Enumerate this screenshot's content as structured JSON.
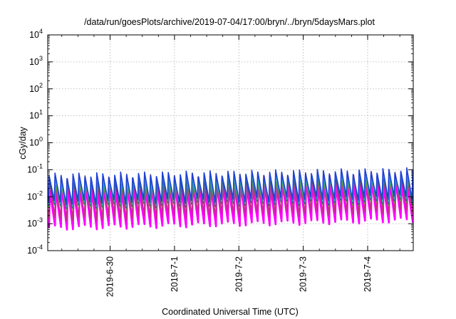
{
  "chart_data": {
    "type": "line",
    "title": "/data/run/goesPlots/archive/2019-07-04/17:00/bryn/../bryn/5daysMars.plot",
    "xlabel": "Coordinated Universal Time (UTC)",
    "ylabel": "cGy/day",
    "yscale": "log",
    "ylim": [
      0.0001,
      10000
    ],
    "xlim": [
      "2019-06-29T00:45",
      "2019-07-04T17:00"
    ],
    "grid": true,
    "x_ticks": [
      "2019-6-30",
      "2019-7-1",
      "2019-7-2",
      "2019-7-3",
      "2019-7-4"
    ],
    "y_ticks": [
      {
        "base": "10",
        "exp": "4"
      },
      {
        "base": "10",
        "exp": "3"
      },
      {
        "base": "10",
        "exp": "2"
      },
      {
        "base": "10",
        "exp": "1"
      },
      {
        "base": "10",
        "exp": "0"
      },
      {
        "base": "10",
        "exp": "-1"
      },
      {
        "base": "10",
        "exp": "-2"
      },
      {
        "base": "10",
        "exp": "-3"
      },
      {
        "base": "10",
        "exp": "-4"
      }
    ],
    "pattern": {
      "description": "sawtooth",
      "cycles_per_day": 10.8,
      "first_peak": "2019-06-29T01:15"
    },
    "series": [
      {
        "color": "#1f3fd6",
        "peak": 0.06,
        "trough": 0.006,
        "peak_late": 0.095,
        "trough_late": 0.01
      },
      {
        "color": "#2aa8b8",
        "peak": 0.045,
        "trough": 0.005,
        "peak_late": 0.07,
        "trough_late": 0.008
      },
      {
        "color": "#5a9a3a",
        "peak": 0.03,
        "trough": 0.004,
        "peak_late": 0.05,
        "trough_late": 0.006
      },
      {
        "color": "#c03080",
        "peak": 0.035,
        "trough": 0.0015,
        "peak_late": 0.055,
        "trough_late": 0.003
      },
      {
        "color": "#ff00ff",
        "peak": 0.02,
        "trough": 0.0007,
        "peak_late": 0.035,
        "trough_late": 0.0014
      },
      {
        "color": "#3a3a9a",
        "peak": 0.05,
        "trough": 0.0045,
        "peak_late": 0.08,
        "trough_late": 0.007
      }
    ]
  }
}
